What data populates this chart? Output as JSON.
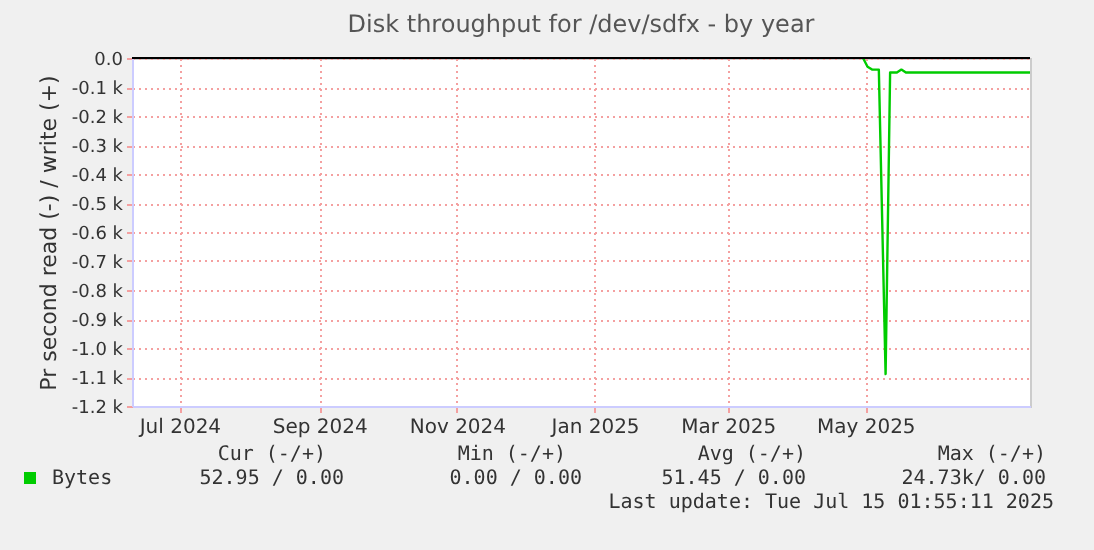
{
  "chart_data": {
    "type": "line",
    "title": "Disk throughput for /dev/sdfx - by year",
    "ylabel": "Pr second read (-) / write (+)",
    "xlim": [
      "2024-06-10",
      "2025-07-13"
    ],
    "xticks": [
      {
        "value": "2024-07-01",
        "label": "Jul 2024"
      },
      {
        "value": "2024-09-01",
        "label": "Sep 2024"
      },
      {
        "value": "2024-11-01",
        "label": "Nov 2024"
      },
      {
        "value": "2025-01-01",
        "label": "Jan 2025"
      },
      {
        "value": "2025-03-01",
        "label": "Mar 2025"
      },
      {
        "value": "2025-05-01",
        "label": "May 2025"
      }
    ],
    "ylim": [
      -1.2,
      0
    ],
    "yticks": [
      {
        "value": 0,
        "label": "0.0"
      },
      {
        "value": -0.1,
        "label": "-0.1 k"
      },
      {
        "value": -0.2,
        "label": "-0.2 k"
      },
      {
        "value": -0.3,
        "label": "-0.3 k"
      },
      {
        "value": -0.4,
        "label": "-0.4 k"
      },
      {
        "value": -0.5,
        "label": "-0.5 k"
      },
      {
        "value": -0.6,
        "label": "-0.6 k"
      },
      {
        "value": -0.7,
        "label": "-0.7 k"
      },
      {
        "value": -0.8,
        "label": "-0.8 k"
      },
      {
        "value": -0.9,
        "label": "-0.9 k"
      },
      {
        "value": -1.0,
        "label": "-1.0 k"
      },
      {
        "value": -1.1,
        "label": "-1.1 k"
      },
      {
        "value": -1.2,
        "label": "-1.2 k"
      }
    ],
    "ref_lines": [
      {
        "axis": "y",
        "value": 0,
        "color": "#000000"
      }
    ],
    "grid": true,
    "legend": "bottom",
    "marker": "none",
    "line_style": "solid",
    "series": [
      {
        "name": "Bytes",
        "color": "#00cc00",
        "x": [
          "2025-04-30",
          "2025-05-02",
          "2025-05-04",
          "2025-05-07",
          "2025-05-10",
          "2025-05-12",
          "2025-05-15",
          "2025-05-17",
          "2025-05-19",
          "2025-05-21",
          "2025-07-13"
        ],
        "values": [
          0,
          -0.03,
          -0.04,
          -0.04,
          -1.09,
          -0.05,
          -0.05,
          -0.04,
          -0.05,
          -0.05,
          -0.05
        ]
      }
    ],
    "annotations": [
      "Cur (-/+)",
      "Min (-/+)",
      "Avg (-/+)",
      "Max (-/+)",
      "52.95 /    0.00",
      "0.00 /    0.00",
      "51.45 /    0.00",
      "24.73k/    0.00",
      "Last update: Tue Jul 15 01:55:11 2025"
    ]
  }
}
